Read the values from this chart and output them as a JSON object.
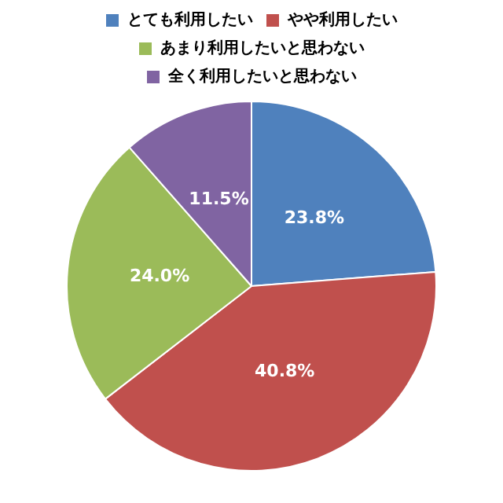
{
  "chart_data": {
    "type": "pie",
    "categories": [
      "とても利用したい",
      "やや利用したい",
      "あまり利用したいと思わない",
      "全く利用したいと思わない"
    ],
    "values": [
      23.8,
      40.8,
      24.0,
      11.5
    ],
    "colors": [
      "#4f81bd",
      "#c0504d",
      "#9bbb59",
      "#8064a2"
    ],
    "value_labels": [
      "23.8%",
      "40.8%",
      "24.0%",
      "11.5%"
    ],
    "legend": "top"
  }
}
